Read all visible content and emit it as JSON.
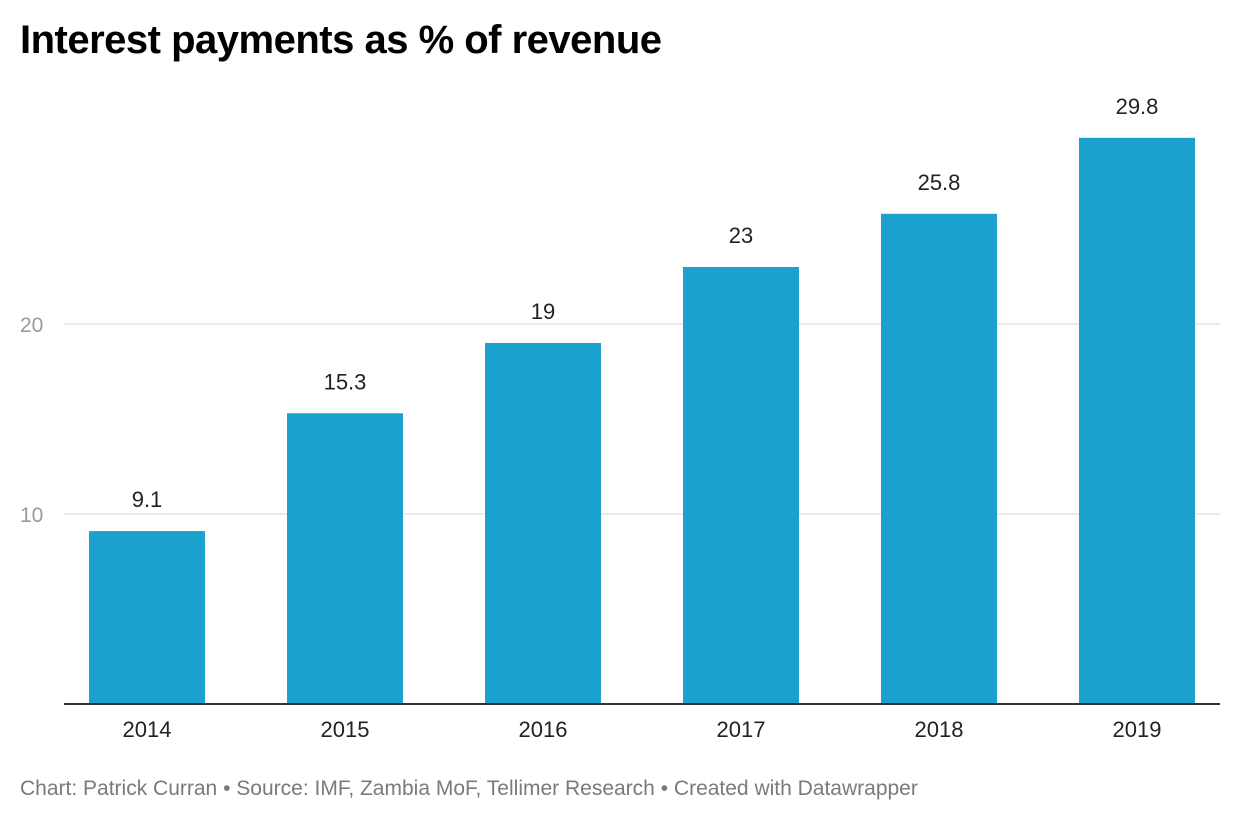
{
  "title": "Interest payments as % of revenue",
  "footer": {
    "credit": "Chart: Patrick Curran",
    "separator": "•",
    "source": "Source: IMF, Zambia MoF, Tellimer Research",
    "tool": "Created with Datawrapper"
  },
  "colors": {
    "bar": "#1aa1cd"
  },
  "chart_data": {
    "type": "bar",
    "title": "Interest payments as % of revenue",
    "categories": [
      "2014",
      "2015",
      "2016",
      "2017",
      "2018",
      "2019"
    ],
    "values": [
      9.1,
      15.3,
      19,
      23,
      25.8,
      29.8
    ],
    "value_labels": [
      "9.1",
      "15.3",
      "19",
      "23",
      "25.8",
      "29.8"
    ],
    "yticks": [
      10,
      20
    ],
    "ylim": [
      0,
      30
    ],
    "grid": true,
    "legend": "none"
  }
}
